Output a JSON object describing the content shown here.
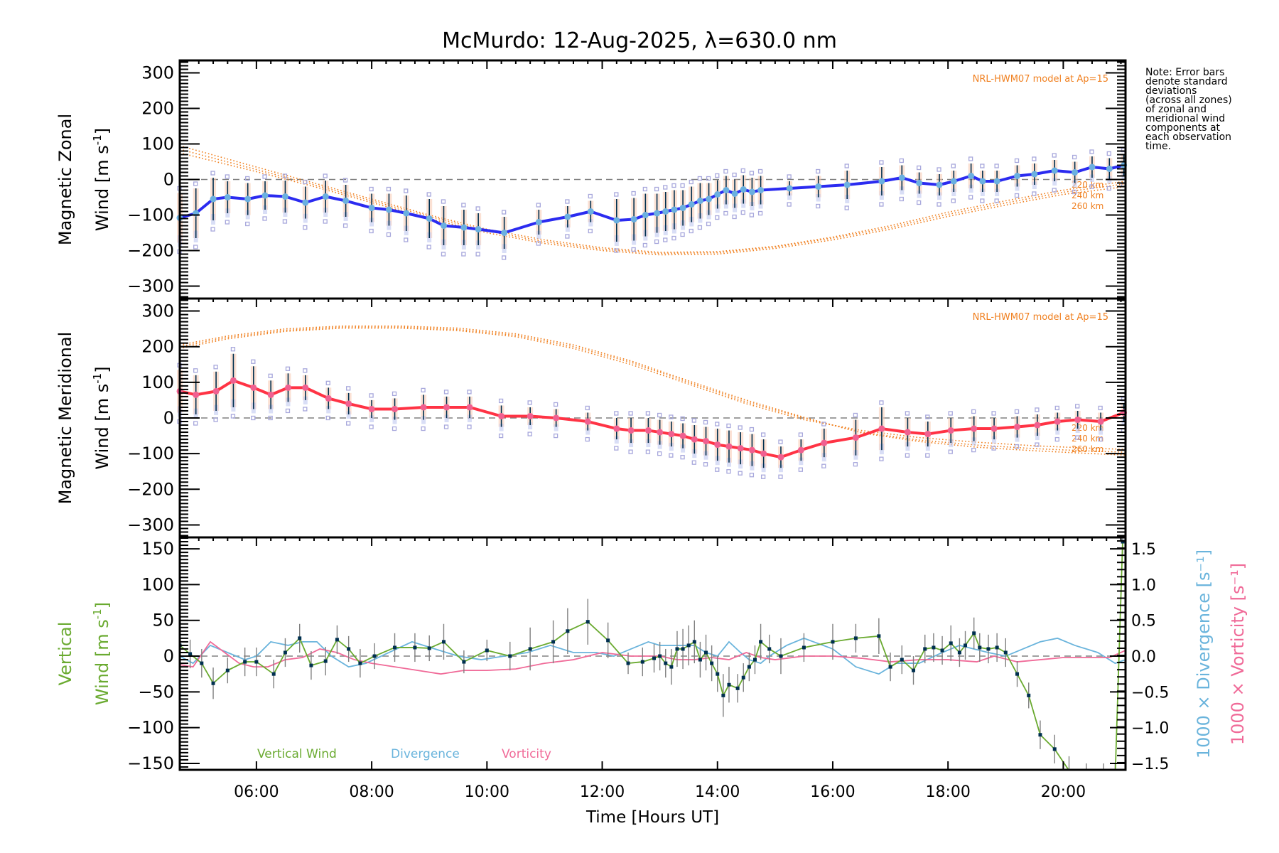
{
  "title": "McMurdo: 12-Aug-2025, λ=630.0 nm",
  "note": "Note: Error bars\ndenote standard\ndeviations\n(across all zones)\nof zonal and\nmeridional wind\ncomponents at\neach observation\ntime.",
  "colors": {
    "zonal": "#2b2bf0",
    "zonal_marker": "#6bb0e0",
    "meridional": "#ff3344",
    "meridional_marker": "#f06090",
    "model": "#f08020",
    "vertical": "#6aaa30",
    "divergence": "#6ab4dc",
    "vorticity": "#f06a98",
    "errorbar": "#003050",
    "scatter": "#a8a8dc",
    "zero_line": "#808080"
  },
  "chart_data": [
    {
      "type": "line",
      "id": "zonal",
      "ylabel": "Magnetic Zonal Wind [m s⁻¹]",
      "ylabel_lines": [
        "Magnetic Zonal",
        "Wind [m s",
        "-1",
        "]"
      ],
      "ylim": [
        -335,
        335
      ],
      "yticks": [
        300,
        200,
        100,
        0,
        -100,
        -200,
        -300
      ],
      "ytick_labels": [
        "300",
        "200",
        "100",
        "0",
        "−100",
        "−200",
        "−300"
      ],
      "xlim": [
        4.67,
        21.08
      ],
      "model_label": "NRL-HWM07 model at Ap=15",
      "model_altitudes": [
        "220 km",
        "240 km",
        "260 km"
      ],
      "model": {
        "x": [
          4.67,
          6,
          7,
          8,
          9,
          10,
          11,
          12,
          13,
          14,
          15,
          16,
          17,
          18,
          19,
          20,
          21.08
        ],
        "220 km": [
          95,
          35,
          -10,
          -55,
          -100,
          -140,
          -170,
          -192,
          -205,
          -203,
          -188,
          -162,
          -130,
          -92,
          -60,
          -30,
          -5
        ],
        "240 km": [
          85,
          28,
          -15,
          -60,
          -104,
          -145,
          -175,
          -196,
          -208,
          -206,
          -190,
          -165,
          -135,
          -98,
          -66,
          -36,
          -12
        ],
        "260 km": [
          75,
          22,
          -20,
          -65,
          -110,
          -150,
          -180,
          -200,
          -212,
          -210,
          -194,
          -170,
          -140,
          -104,
          -72,
          -42,
          -20
        ]
      },
      "series": {
        "name": "Zonal wind",
        "x": [
          4.67,
          4.95,
          5.25,
          5.5,
          5.85,
          6.15,
          6.5,
          6.85,
          7.2,
          7.55,
          8.0,
          8.3,
          8.6,
          9.0,
          9.25,
          9.6,
          9.85,
          10.3,
          10.9,
          11.4,
          11.8,
          12.25,
          12.55,
          12.75,
          12.95,
          13.1,
          13.25,
          13.4,
          13.55,
          13.7,
          13.85,
          14.0,
          14.15,
          14.3,
          14.45,
          14.6,
          14.75,
          15.25,
          15.75,
          16.25,
          16.85,
          17.2,
          17.5,
          17.85,
          18.1,
          18.4,
          18.6,
          18.85,
          19.2,
          19.5,
          19.85,
          20.2,
          20.5,
          20.8,
          21.05
        ],
        "y": [
          -108,
          -95,
          -55,
          -50,
          -55,
          -45,
          -48,
          -65,
          -48,
          -60,
          -80,
          -85,
          -95,
          -110,
          -130,
          -135,
          -140,
          -150,
          -120,
          -105,
          -90,
          -115,
          -112,
          -100,
          -95,
          -90,
          -85,
          -80,
          -70,
          -60,
          -55,
          -42,
          -30,
          -40,
          -28,
          -35,
          -30,
          -25,
          -20,
          -15,
          -5,
          5,
          -10,
          -15,
          -5,
          10,
          -5,
          -5,
          10,
          15,
          25,
          20,
          35,
          30,
          40
        ],
        "err": [
          70,
          70,
          60,
          45,
          45,
          40,
          45,
          45,
          45,
          45,
          40,
          45,
          50,
          55,
          55,
          50,
          45,
          45,
          35,
          30,
          30,
          60,
          60,
          60,
          55,
          55,
          55,
          50,
          50,
          50,
          45,
          40,
          40,
          40,
          40,
          40,
          40,
          20,
          30,
          40,
          40,
          35,
          30,
          30,
          30,
          35,
          30,
          30,
          30,
          30,
          30,
          30,
          30,
          30,
          30
        ]
      }
    },
    {
      "type": "line",
      "id": "meridional",
      "ylabel": "Magnetic Meridional Wind [m s⁻¹]",
      "ylabel_lines": [
        "Magnetic Meridional",
        "Wind [m s",
        "-1",
        "]"
      ],
      "ylim": [
        -335,
        335
      ],
      "yticks": [
        300,
        200,
        100,
        0,
        -100,
        -200,
        -300
      ],
      "ytick_labels": [
        "300",
        "200",
        "100",
        "0",
        "−100",
        "−200",
        "−300"
      ],
      "xlim": [
        4.67,
        21.08
      ],
      "model_label": "NRL-HWM07 model at Ap=15",
      "model_altitudes": [
        "220 km",
        "240 km",
        "260 km"
      ],
      "model": {
        "x": [
          4.67,
          5.5,
          6.5,
          7.5,
          8.5,
          9.5,
          10.5,
          11.5,
          12.5,
          13.5,
          14.5,
          15.5,
          16.5,
          17.5,
          18.5,
          19.5,
          20.5,
          21.08
        ],
        "220 km": [
          195,
          222,
          243,
          252,
          252,
          245,
          228,
          195,
          150,
          95,
          40,
          -5,
          -35,
          -55,
          -68,
          -78,
          -85,
          -88
        ],
        "240 km": [
          200,
          226,
          246,
          255,
          255,
          248,
          232,
          200,
          156,
          100,
          45,
          0,
          -40,
          -62,
          -76,
          -86,
          -93,
          -96
        ],
        "260 km": [
          205,
          230,
          250,
          258,
          258,
          252,
          236,
          205,
          160,
          104,
          50,
          2,
          -42,
          -66,
          -82,
          -92,
          -100,
          -104
        ]
      },
      "series": {
        "name": "Meridional wind",
        "x": [
          4.67,
          4.95,
          5.3,
          5.6,
          5.95,
          6.25,
          6.55,
          6.85,
          7.25,
          7.6,
          8.0,
          8.4,
          8.9,
          9.3,
          9.7,
          10.25,
          10.75,
          11.2,
          11.75,
          12.25,
          12.5,
          12.8,
          13.0,
          13.2,
          13.4,
          13.6,
          13.8,
          14.0,
          14.2,
          14.4,
          14.6,
          14.8,
          15.1,
          15.45,
          15.85,
          16.4,
          16.85,
          17.3,
          17.65,
          18.05,
          18.45,
          18.8,
          19.2,
          19.55,
          19.9,
          20.25,
          20.65,
          21.05
        ],
        "y": [
          75,
          65,
          75,
          105,
          85,
          65,
          85,
          85,
          55,
          40,
          25,
          25,
          30,
          30,
          30,
          5,
          5,
          0,
          -10,
          -30,
          -35,
          -35,
          -40,
          -45,
          -50,
          -60,
          -65,
          -75,
          -80,
          -85,
          -90,
          -100,
          -110,
          -90,
          -70,
          -55,
          -30,
          -40,
          -45,
          -35,
          -30,
          -30,
          -25,
          -20,
          -10,
          -5,
          -10,
          15
        ],
        "err": [
          60,
          55,
          55,
          75,
          60,
          40,
          40,
          35,
          30,
          30,
          25,
          30,
          35,
          30,
          30,
          30,
          25,
          25,
          25,
          30,
          35,
          35,
          35,
          35,
          35,
          40,
          40,
          45,
          45,
          45,
          45,
          40,
          30,
          30,
          40,
          50,
          60,
          40,
          35,
          35,
          35,
          30,
          30,
          30,
          25,
          25,
          25,
          25
        ]
      }
    },
    {
      "type": "line",
      "id": "vertical",
      "ylabel": "Vertical Wind [m s⁻¹]",
      "ylabel_lines": [
        "Vertical",
        "Wind [m s",
        "-1",
        "]"
      ],
      "ylim": [
        -159,
        166
      ],
      "yticks": [
        150,
        100,
        50,
        0,
        -50,
        -100,
        -150
      ],
      "ytick_labels": [
        "150",
        "100",
        "50",
        "0",
        "−50",
        "−100",
        "−150"
      ],
      "y2label_div": "1000 × Divergence [s⁻¹]",
      "y2label_vor": "1000 × Vorticity [s⁻¹]",
      "y2lim": [
        -1.59,
        1.66
      ],
      "y2ticks": [
        1.5,
        1.0,
        0.5,
        0.0,
        -0.5,
        -1.0,
        -1.5
      ],
      "y2tick_labels": [
        "1.5",
        "1.0",
        "0.5",
        "0.0",
        "−0.5",
        "−1.0",
        "−1.5"
      ],
      "xlim": [
        4.67,
        21.08
      ],
      "xticks": [
        6,
        8,
        10,
        12,
        14,
        16,
        18,
        20
      ],
      "xtick_labels": [
        "06:00",
        "08:00",
        "10:00",
        "12:00",
        "14:00",
        "16:00",
        "18:00",
        "20:00"
      ],
      "xlabel": "Time [Hours UT]",
      "legend": [
        "Vertical Wind",
        "Divergence",
        "Vorticity"
      ],
      "legend_position": "bottom-left",
      "series": [
        {
          "name": "Vertical Wind",
          "x": [
            4.67,
            4.85,
            5.05,
            5.25,
            5.5,
            5.8,
            6.0,
            6.3,
            6.5,
            6.75,
            6.95,
            7.2,
            7.4,
            7.6,
            7.8,
            8.05,
            8.4,
            8.75,
            9.0,
            9.25,
            9.6,
            10.0,
            10.4,
            10.75,
            11.15,
            11.4,
            11.75,
            12.1,
            12.45,
            12.7,
            12.9,
            13.0,
            13.1,
            13.2,
            13.3,
            13.4,
            13.5,
            13.6,
            13.7,
            13.8,
            13.9,
            14.0,
            14.1,
            14.2,
            14.35,
            14.45,
            14.55,
            14.65,
            14.75,
            14.9,
            15.1,
            15.5,
            16.0,
            16.4,
            16.8,
            17.0,
            17.2,
            17.4,
            17.6,
            17.75,
            17.9,
            18.05,
            18.2,
            18.3,
            18.45,
            18.55,
            18.7,
            18.85,
            19.0,
            19.2,
            19.4,
            19.6,
            19.85,
            20.1,
            20.4,
            20.7,
            20.9,
            21.03
          ],
          "y": [
            15,
            3,
            -10,
            -38,
            -20,
            -8,
            -8,
            -25,
            5,
            25,
            -13,
            -7,
            23,
            10,
            -10,
            0,
            12,
            12,
            11,
            20,
            -8,
            8,
            0,
            10,
            20,
            35,
            48,
            22,
            -10,
            -8,
            -3,
            0,
            -10,
            -15,
            10,
            10,
            15,
            20,
            -5,
            5,
            -10,
            -25,
            -55,
            -40,
            -45,
            -30,
            -15,
            -5,
            20,
            10,
            0,
            12,
            20,
            25,
            28,
            -15,
            -5,
            -20,
            10,
            12,
            8,
            18,
            5,
            15,
            32,
            12,
            10,
            12,
            5,
            -25,
            -55,
            -110,
            -130,
            -160,
            -170,
            -170,
            -170,
            160
          ],
          "err": [
            20,
            20,
            20,
            22,
            18,
            20,
            20,
            20,
            20,
            20,
            20,
            20,
            20,
            18,
            20,
            18,
            20,
            20,
            18,
            25,
            16,
            15,
            20,
            30,
            30,
            32,
            32,
            25,
            15,
            20,
            20,
            20,
            20,
            25,
            25,
            28,
            28,
            30,
            25,
            25,
            25,
            25,
            30,
            25,
            20,
            20,
            20,
            20,
            25,
            20,
            25,
            20,
            25,
            20,
            25,
            20,
            20,
            20,
            20,
            20,
            20,
            25,
            20,
            20,
            22,
            20,
            20,
            20,
            20,
            18,
            18,
            20,
            20,
            20,
            20,
            20,
            20,
            20
          ]
        },
        {
          "name": "Divergence",
          "axis": "right",
          "x": [
            4.67,
            4.9,
            5.2,
            5.5,
            5.8,
            6.0,
            6.25,
            6.55,
            6.8,
            7.05,
            7.3,
            7.6,
            7.9,
            8.3,
            8.7,
            9.1,
            9.5,
            9.9,
            10.3,
            10.7,
            11.1,
            11.5,
            11.9,
            12.2,
            12.5,
            12.8,
            13.0,
            13.3,
            13.6,
            13.8,
            14.0,
            14.2,
            14.4,
            14.55,
            14.75,
            14.9,
            15.2,
            15.5,
            16.0,
            16.4,
            16.8,
            17.1,
            17.5,
            17.9,
            18.2,
            18.45,
            18.7,
            19.0,
            19.3,
            19.6,
            19.9,
            20.2,
            20.6,
            20.9,
            21.08
          ],
          "y": [
            0.0,
            -0.1,
            0.15,
            0.05,
            -0.05,
            0.0,
            0.2,
            0.15,
            0.2,
            0.2,
            0.0,
            -0.15,
            -0.1,
            0.05,
            0.2,
            0.1,
            0.0,
            -0.05,
            0.0,
            0.05,
            0.15,
            0.05,
            0.05,
            0.0,
            0.1,
            0.2,
            0.15,
            0.15,
            0.15,
            0.05,
            0.0,
            0.2,
            0.05,
            -0.05,
            -0.1,
            0.0,
            0.15,
            0.25,
            0.1,
            -0.15,
            -0.25,
            -0.1,
            -0.1,
            0.05,
            0.15,
            0.1,
            0.05,
            0.0,
            0.1,
            0.2,
            0.25,
            0.15,
            0.05,
            -0.1,
            -0.05
          ]
        },
        {
          "name": "Vorticity",
          "axis": "right",
          "x": [
            4.67,
            4.9,
            5.2,
            5.45,
            5.7,
            5.95,
            6.2,
            6.5,
            6.8,
            7.1,
            7.4,
            7.7,
            8.0,
            8.4,
            8.8,
            9.2,
            9.6,
            10.0,
            10.5,
            11.0,
            11.5,
            12.0,
            12.5,
            13.0,
            13.3,
            13.6,
            13.9,
            14.2,
            14.5,
            14.75,
            15.0,
            15.5,
            16.0,
            16.5,
            17.0,
            17.5,
            18.0,
            18.5,
            18.8,
            19.2,
            19.6,
            20.0,
            20.4,
            20.8,
            21.08
          ],
          "y": [
            -0.12,
            -0.15,
            0.2,
            0.05,
            -0.1,
            -0.15,
            -0.15,
            -0.05,
            -0.02,
            0.1,
            0.05,
            -0.05,
            -0.1,
            -0.15,
            -0.2,
            -0.25,
            -0.2,
            -0.2,
            -0.18,
            -0.1,
            -0.05,
            0.05,
            0.0,
            0.0,
            -0.05,
            -0.05,
            -0.02,
            -0.05,
            0.05,
            -0.02,
            -0.05,
            0.0,
            0.0,
            -0.03,
            -0.08,
            -0.05,
            -0.05,
            -0.08,
            0.0,
            -0.08,
            -0.05,
            -0.02,
            -0.02,
            -0.02,
            0.08
          ]
        }
      ]
    }
  ]
}
